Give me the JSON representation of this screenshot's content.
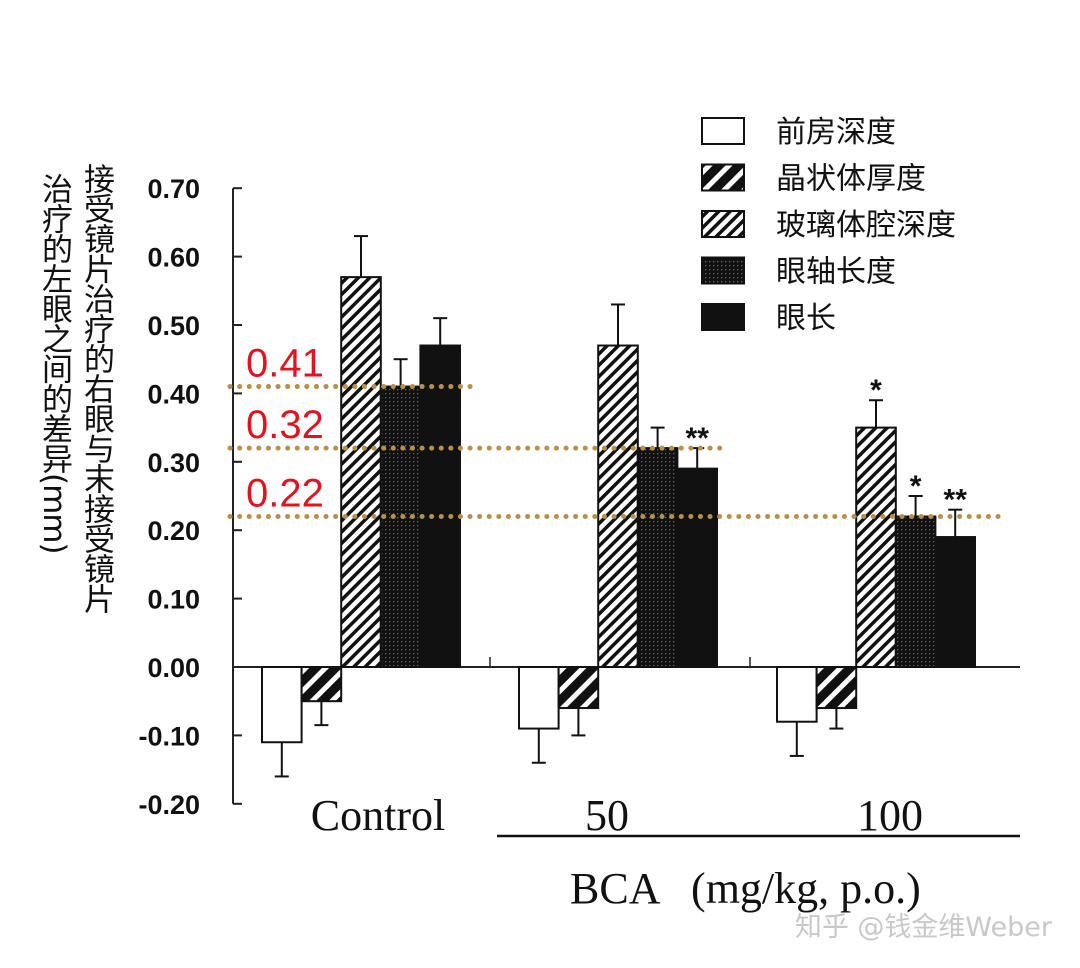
{
  "chart_data": {
    "type": "bar",
    "title": "",
    "ylabel_line1": "接受镜片治疗的右眼与末接受镜片",
    "ylabel_line2": "治疗的左眼之间的差异(mm)",
    "xlabel": "BCA   (mg/kg, p.o.)",
    "ylim": [
      -0.2,
      0.7
    ],
    "yticks": [
      "0.70",
      "0.60",
      "0.50",
      "0.40",
      "0.30",
      "0.20",
      "0.10",
      "0.00",
      "-0.10",
      "-0.20"
    ],
    "ytick_values": [
      0.7,
      0.6,
      0.5,
      0.4,
      0.3,
      0.2,
      0.1,
      0.0,
      -0.1,
      -0.2
    ],
    "categories": [
      "Control",
      "50",
      "100"
    ],
    "legend_position": "top-right",
    "series": [
      {
        "name": "前房深度",
        "pattern": "white",
        "values": [
          -0.11,
          -0.09,
          -0.08
        ],
        "errors": [
          0.05,
          0.05,
          0.05
        ],
        "sig": [
          "",
          "",
          ""
        ]
      },
      {
        "name": "晶状体厚度",
        "pattern": "wide-hatch",
        "values": [
          -0.05,
          -0.06,
          -0.06
        ],
        "errors": [
          0.035,
          0.04,
          0.03
        ],
        "sig": [
          "",
          "",
          ""
        ]
      },
      {
        "name": "玻璃体腔深度",
        "pattern": "fine-hatch",
        "values": [
          0.57,
          0.47,
          0.35
        ],
        "errors": [
          0.06,
          0.06,
          0.04
        ],
        "sig": [
          "",
          "",
          "*"
        ]
      },
      {
        "name": "眼轴长度",
        "pattern": "dots",
        "values": [
          0.41,
          0.32,
          0.22
        ],
        "errors": [
          0.04,
          0.03,
          0.03
        ],
        "sig": [
          "",
          "",
          "*"
        ]
      },
      {
        "name": "眼长",
        "pattern": "black",
        "values": [
          0.47,
          0.29,
          0.19
        ],
        "errors": [
          0.04,
          0.03,
          0.04
        ],
        "sig": [
          "",
          "**",
          "**"
        ]
      }
    ],
    "reference_lines": [
      {
        "label": "0.41",
        "value": 0.41,
        "extends_to_group": 0
      },
      {
        "label": "0.32",
        "value": 0.32,
        "extends_to_group": 1
      },
      {
        "label": "0.22",
        "value": 0.22,
        "extends_to_group": 2
      }
    ],
    "colors": {
      "reference_line": "#b8904a",
      "reference_label": "#e0141e"
    }
  },
  "watermark": "知乎 @钱金维Weber"
}
